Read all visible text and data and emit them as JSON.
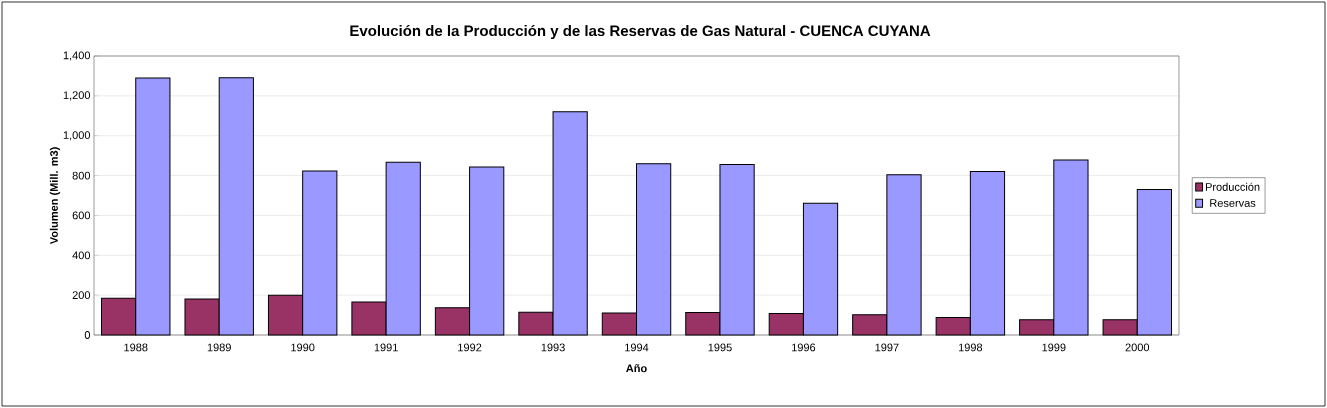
{
  "chart_data": {
    "type": "bar",
    "title": "Evolución de la Producción y de las Reservas de Gas Natural - CUENCA CUYANA",
    "xlabel": "Año",
    "ylabel": "Volumen (Mill. m3)",
    "categories": [
      "1988",
      "1989",
      "1990",
      "1991",
      "1992",
      "1993",
      "1994",
      "1995",
      "1996",
      "1997",
      "1998",
      "1999",
      "2000"
    ],
    "series": [
      {
        "name": "Producción",
        "color": "#993366",
        "values": [
          185,
          181,
          199,
          165,
          137,
          114,
          111,
          113,
          108,
          101,
          88,
          76,
          76
        ]
      },
      {
        "name": "Reservas",
        "color": "#9999ff",
        "values": [
          1289,
          1291,
          823,
          867,
          843,
          1120,
          859,
          855,
          661,
          804,
          820,
          878,
          730
        ]
      }
    ],
    "ylim": [
      0,
      1400
    ],
    "yticks": [
      0,
      200,
      400,
      600,
      800,
      {
        "value": 1000,
        "label": "1,000"
      },
      {
        "value": 1200,
        "label": "1,200"
      },
      {
        "value": 1400,
        "label": "1,400"
      }
    ],
    "grid": "y",
    "legend": "right"
  }
}
